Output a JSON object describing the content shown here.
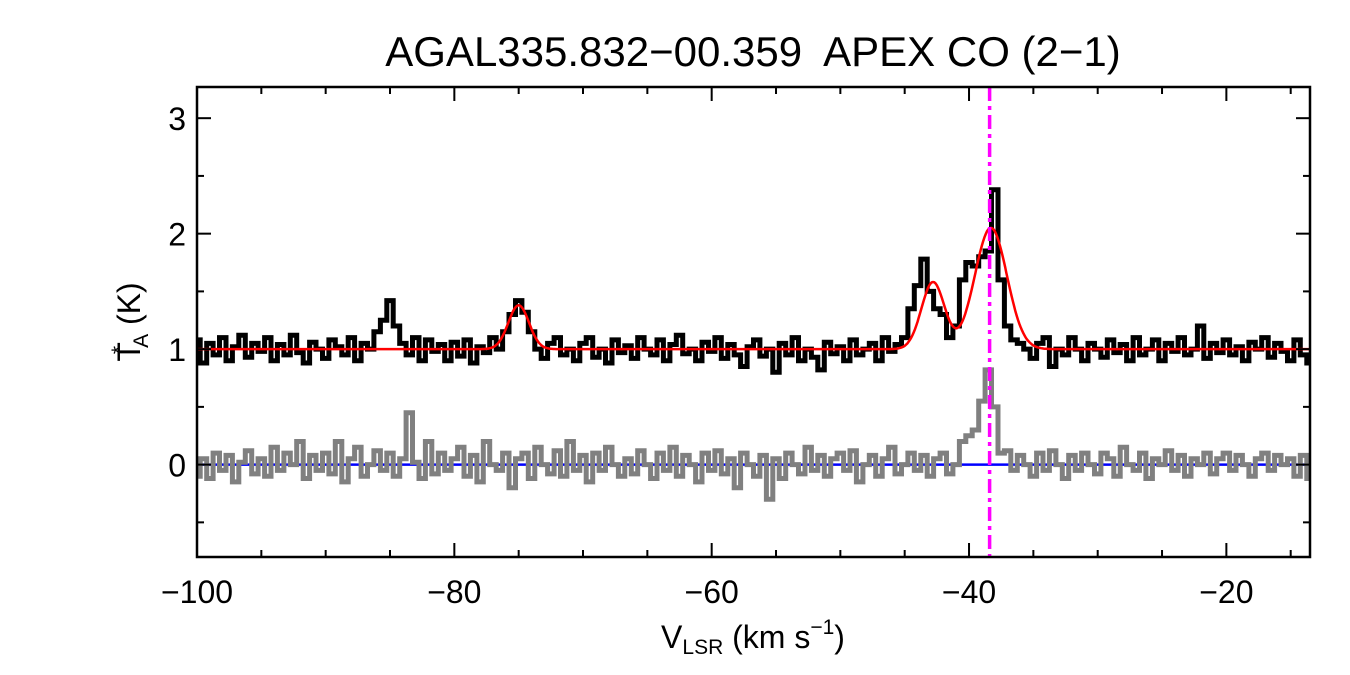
{
  "chart_data": {
    "type": "line",
    "title": "AGAL335.832−00.359  APEX CO (2−1)",
    "xlabel": {
      "main": "V",
      "sub": "LSR",
      "rest": " (km s",
      "sup": "−1",
      "end": ")"
    },
    "ylabel": {
      "main": "T",
      "sup": "*",
      "sub": "A",
      "rest": " (K)"
    },
    "xlim": [
      -100,
      -13.5
    ],
    "ylim": [
      -0.8,
      3.27
    ],
    "xticks": [
      -100,
      -80,
      -60,
      -40,
      -20
    ],
    "xtick_labels": [
      "−100",
      "−80",
      "−60",
      "−40",
      "−20"
    ],
    "yticks": [
      0,
      1,
      2,
      3
    ],
    "ytick_labels": [
      "0",
      "1",
      "2",
      "3"
    ],
    "x_minor_step": 5,
    "y_minor_step": 0.5,
    "grid": false,
    "channel_start": -100,
    "channel_width": 0.5,
    "series": [
      {
        "role": "spectrum",
        "color": "#000000",
        "style": "histogram",
        "values": [
          1.08,
          0.88,
          1.05,
          0.95,
          1.1,
          0.9,
          1.02,
          1.12,
          0.93,
          1.05,
          0.98,
          1.1,
          0.9,
          1.04,
          0.95,
          1.12,
          0.97,
          0.88,
          1.06,
          1.0,
          0.92,
          1.08,
          1.02,
          0.95,
          1.1,
          0.9,
          1.05,
          1.0,
          1.15,
          1.25,
          1.42,
          1.2,
          1.05,
          0.95,
          1.1,
          0.9,
          1.08,
          0.98,
          1.04,
          0.9,
          1.06,
          0.94,
          1.08,
          0.88,
          1.02,
          0.97,
          1.1,
          1.0,
          1.15,
          1.3,
          1.42,
          1.32,
          1.15,
          1.0,
          0.92,
          1.05,
          1.1,
          0.95,
          1.0,
          0.9,
          1.05,
          1.1,
          0.93,
          1.0,
          0.88,
          1.08,
          0.97,
          1.03,
          0.92,
          1.1,
          1.0,
          0.95,
          1.08,
          0.9,
          1.04,
          1.12,
          0.96,
          1.0,
          0.9,
          1.06,
          0.98,
          1.1,
          0.92,
          1.04,
          0.95,
          0.85,
          1.02,
          1.08,
          0.94,
          1.0,
          0.8,
          1.05,
          0.95,
          1.1,
          0.9,
          1.0,
          0.93,
          0.82,
          1.06,
          0.96,
          1.02,
          0.9,
          1.08,
          0.95,
          1.0,
          1.05,
          0.9,
          1.1,
          0.98,
          1.04,
          1.1,
          1.35,
          1.55,
          1.78,
          1.5,
          1.35,
          1.3,
          1.1,
          1.2,
          1.6,
          1.75,
          1.72,
          1.8,
          1.85,
          2.38,
          1.6,
          1.2,
          1.08,
          1.05,
          1.0,
          0.92,
          1.05,
          1.1,
          0.85,
          1.0,
          0.95,
          1.1,
          1.0,
          0.9,
          1.05,
          1.0,
          0.93,
          1.08,
          0.97,
          1.04,
          0.9,
          1.1,
          0.95,
          1.0,
          1.08,
          0.9,
          1.05,
          0.98,
          1.1,
          0.95,
          1.0,
          1.2,
          0.92,
          1.05,
          0.97,
          1.08,
          0.95,
          1.02,
          0.9,
          1.06,
          1.0,
          1.1,
          0.93,
          1.05,
          0.98,
          0.9,
          1.08,
          0.95,
          0.88
        ]
      },
      {
        "role": "second-spectrum",
        "color": "#808080",
        "style": "histogram",
        "values": [
          -0.1,
          0.05,
          -0.12,
          0.1,
          -0.05,
          0.08,
          -0.15,
          0.02,
          0.12,
          -0.08,
          0.05,
          -0.1,
          0.15,
          -0.05,
          0.1,
          0.0,
          0.2,
          -0.12,
          0.08,
          -0.05,
          0.1,
          -0.08,
          0.2,
          -0.15,
          0.05,
          0.15,
          -0.1,
          0.0,
          0.12,
          -0.05,
          0.1,
          -0.1,
          0.05,
          0.45,
          0.02,
          -0.12,
          0.2,
          -0.08,
          0.1,
          -0.05,
          0.05,
          0.15,
          -0.1,
          0.08,
          -0.15,
          0.2,
          0.0,
          -0.05,
          0.1,
          -0.2,
          0.05,
          0.1,
          -0.12,
          0.15,
          0.0,
          -0.08,
          0.12,
          -0.1,
          0.2,
          -0.05,
          0.08,
          -0.15,
          0.1,
          -0.05,
          0.15,
          0.0,
          -0.1,
          0.05,
          -0.08,
          0.12,
          0.0,
          -0.12,
          0.1,
          -0.05,
          0.15,
          -0.1,
          0.08,
          0.0,
          -0.15,
          0.1,
          -0.05,
          0.12,
          -0.08,
          0.05,
          -0.2,
          0.1,
          0.0,
          -0.1,
          0.08,
          -0.3,
          0.05,
          -0.12,
          0.1,
          0.0,
          -0.08,
          0.15,
          -0.05,
          0.08,
          -0.1,
          0.05,
          0.1,
          -0.05,
          0.12,
          -0.15,
          0.0,
          0.08,
          -0.1,
          0.05,
          0.15,
          -0.08,
          0.0,
          0.1,
          -0.05,
          0.08,
          -0.1,
          0.05,
          0.1,
          -0.08,
          0.0,
          0.2,
          0.25,
          0.3,
          0.55,
          0.82,
          0.5,
          0.1,
          0.12,
          -0.05,
          0.08,
          0.0,
          -0.1,
          0.1,
          -0.05,
          0.12,
          0.0,
          -0.12,
          0.08,
          -0.05,
          0.1,
          0.0,
          -0.08,
          0.1,
          0.05,
          -0.1,
          0.15,
          0.0,
          -0.05,
          0.1,
          -0.12,
          0.05,
          0.0,
          0.12,
          -0.05,
          0.08,
          -0.1,
          0.05,
          0.0,
          0.1,
          -0.08,
          0.05,
          0.1,
          -0.05,
          0.08,
          0.0,
          -0.1,
          0.05,
          0.1,
          -0.05,
          0.08,
          0.0,
          0.05,
          -0.1,
          0.08,
          -0.12
        ]
      }
    ],
    "fit": {
      "color": "#ff0000",
      "baseline": 1.0,
      "components": [
        {
          "center": -75.0,
          "amplitude": 0.38,
          "sigma": 0.8
        },
        {
          "center": -42.8,
          "amplitude": 0.58,
          "sigma": 0.9
        },
        {
          "center": -38.3,
          "amplitude": 1.05,
          "sigma": 1.25
        }
      ]
    },
    "zero_line": {
      "value": 0,
      "color": "#0000ff"
    },
    "marker_line": {
      "velocity": -38.4,
      "color": "#ff00ff",
      "style": "dash-dot"
    }
  }
}
